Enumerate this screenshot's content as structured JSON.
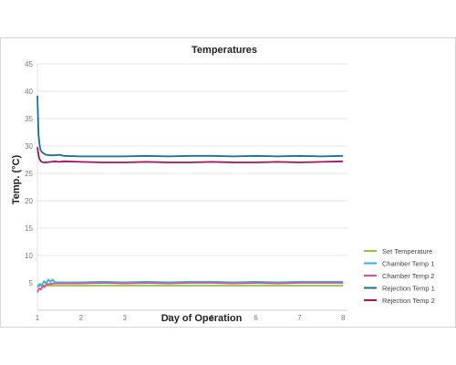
{
  "chart_data": {
    "type": "line",
    "title": "Temperatures",
    "xlabel": "Day of Operation",
    "ylabel": "Temp. (°C)",
    "xlim": [
      1,
      8.1
    ],
    "ylim": [
      0,
      45
    ],
    "x_ticks": [
      "1",
      "2",
      "3",
      "4",
      "5",
      "6",
      "7",
      "8"
    ],
    "y_ticks": [
      "5",
      "10",
      "15",
      "20",
      "25",
      "30",
      "35",
      "40",
      "45"
    ],
    "grid": "horizontal",
    "legend_position": "right-bottom",
    "series": [
      {
        "name": "Set Temperature",
        "color": "#8cc63f",
        "x": [
          1,
          1.05,
          1.1,
          1.2,
          1.3,
          1.4,
          1.6,
          2,
          3,
          4,
          5,
          6,
          7,
          8
        ],
        "y": [
          4.5,
          4.5,
          4.5,
          4.5,
          4.5,
          4.5,
          4.5,
          4.5,
          4.5,
          4.5,
          4.5,
          4.5,
          4.5,
          4.5
        ]
      },
      {
        "name": "Chamber Temp 1",
        "color": "#29b6e6",
        "x": [
          1,
          1.05,
          1.1,
          1.15,
          1.2,
          1.25,
          1.3,
          1.35,
          1.4,
          1.5,
          1.6,
          2,
          2.5,
          3,
          3.5,
          4,
          4.5,
          5,
          5.5,
          6,
          6.5,
          7,
          7.5,
          8
        ],
        "y": [
          4.2,
          4.8,
          4.5,
          5.3,
          4.9,
          5.6,
          5.2,
          5.6,
          5.1,
          5.1,
          5.1,
          5.1,
          5.2,
          5.1,
          5.2,
          5.1,
          5.2,
          5.2,
          5.1,
          5.2,
          5.1,
          5.2,
          5.2,
          5.2
        ]
      },
      {
        "name": "Chamber Temp 2",
        "color": "#ea4b8b",
        "x": [
          1,
          1.04,
          1.08,
          1.12,
          1.16,
          1.2,
          1.3,
          1.4,
          1.6,
          2,
          2.5,
          3,
          3.5,
          4,
          4.5,
          5,
          5.5,
          6,
          6.5,
          7,
          7.5,
          8
        ],
        "y": [
          3.3,
          4.0,
          3.8,
          4.4,
          4.2,
          4.7,
          4.8,
          4.9,
          4.9,
          4.9,
          5.0,
          4.9,
          5.0,
          4.9,
          5.0,
          5.0,
          4.9,
          5.0,
          4.9,
          5.0,
          5.0,
          5.0
        ]
      },
      {
        "name": "Rejection Temp 1",
        "color": "#1a6f96",
        "x": [
          1,
          1.01,
          1.02,
          1.03,
          1.05,
          1.07,
          1.1,
          1.15,
          1.2,
          1.3,
          1.4,
          1.5,
          1.6,
          2,
          2.5,
          3,
          3.5,
          4,
          4.5,
          5,
          5.5,
          6,
          6.5,
          7,
          7.5,
          8
        ],
        "y": [
          39.2,
          36.5,
          33.5,
          31.8,
          30.2,
          29.3,
          28.9,
          28.6,
          28.4,
          28.3,
          28.3,
          28.4,
          28.2,
          28.1,
          28.1,
          28.1,
          28.2,
          28.1,
          28.2,
          28.2,
          28.1,
          28.2,
          28.1,
          28.2,
          28.1,
          28.2
        ]
      },
      {
        "name": "Rejection Temp 2",
        "color": "#a3135a",
        "x": [
          1,
          1.02,
          1.04,
          1.07,
          1.1,
          1.15,
          1.2,
          1.3,
          1.4,
          1.5,
          1.6,
          2,
          2.5,
          3,
          3.5,
          4,
          4.5,
          5,
          5.5,
          6,
          6.5,
          7,
          7.5,
          8
        ],
        "y": [
          29.8,
          28.6,
          27.8,
          27.3,
          27.1,
          27.0,
          27.0,
          27.1,
          27.2,
          27.1,
          27.2,
          27.1,
          27.0,
          27.0,
          27.1,
          27.0,
          27.0,
          27.1,
          27.0,
          27.0,
          27.1,
          27.0,
          27.1,
          27.2
        ]
      }
    ]
  }
}
